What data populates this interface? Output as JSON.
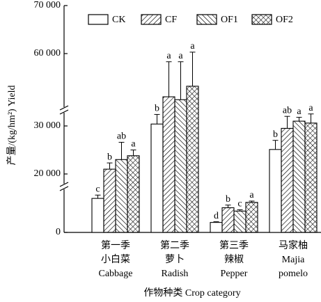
{
  "chart_data": {
    "type": "bar",
    "y_label": "产量/(kg/hm²) Yield",
    "x_label": "作物种类 Crop category",
    "categories": [
      [
        "第一季",
        "小白菜",
        "Cabbage"
      ],
      [
        "第二季",
        "萝卜",
        "Radish"
      ],
      [
        "第三季",
        "辣椒",
        "Pepper"
      ],
      [
        "马家柚",
        "Majia",
        "pomelo"
      ]
    ],
    "y_segments": [
      [
        0,
        18000
      ],
      [
        18000,
        32500
      ],
      [
        49000,
        70000
      ]
    ],
    "yticks": [
      0,
      {
        "value": 20000,
        "label": "20 000"
      },
      {
        "value": 30000,
        "label": "30 000"
      },
      {
        "value": 60000,
        "label": "60 000"
      },
      {
        "value": 70000,
        "label": "70 000"
      }
    ],
    "series": [
      {
        "name": "CK",
        "pattern": "none",
        "color": "#000000",
        "values": [
          12750,
          30400,
          3750,
          25100
        ],
        "errors": [
          1250,
          2000,
          250,
          1900
        ],
        "letters": [
          "c",
          "b",
          "d",
          "b"
        ]
      },
      {
        "name": "CF",
        "pattern": "forward",
        "color": "#000000",
        "values": [
          21000,
          51000,
          9250,
          29500
        ],
        "errors": [
          1300,
          7300,
          1000,
          2500
        ],
        "letters": [
          "b",
          "a",
          "b",
          "ab"
        ]
      },
      {
        "name": "OF1",
        "pattern": "backward",
        "color": "#000000",
        "values": [
          23000,
          50400,
          8000,
          31000
        ],
        "errors": [
          3600,
          7900,
          500,
          800
        ],
        "letters": [
          "ab",
          "a",
          "c",
          "a"
        ]
      },
      {
        "name": "OF2",
        "pattern": "cross",
        "color": "#000000",
        "values": [
          23800,
          53200,
          11250,
          30600
        ],
        "errors": [
          1200,
          7100,
          500,
          2800
        ],
        "letters": [
          "a",
          "a",
          "a",
          "a"
        ]
      }
    ]
  }
}
